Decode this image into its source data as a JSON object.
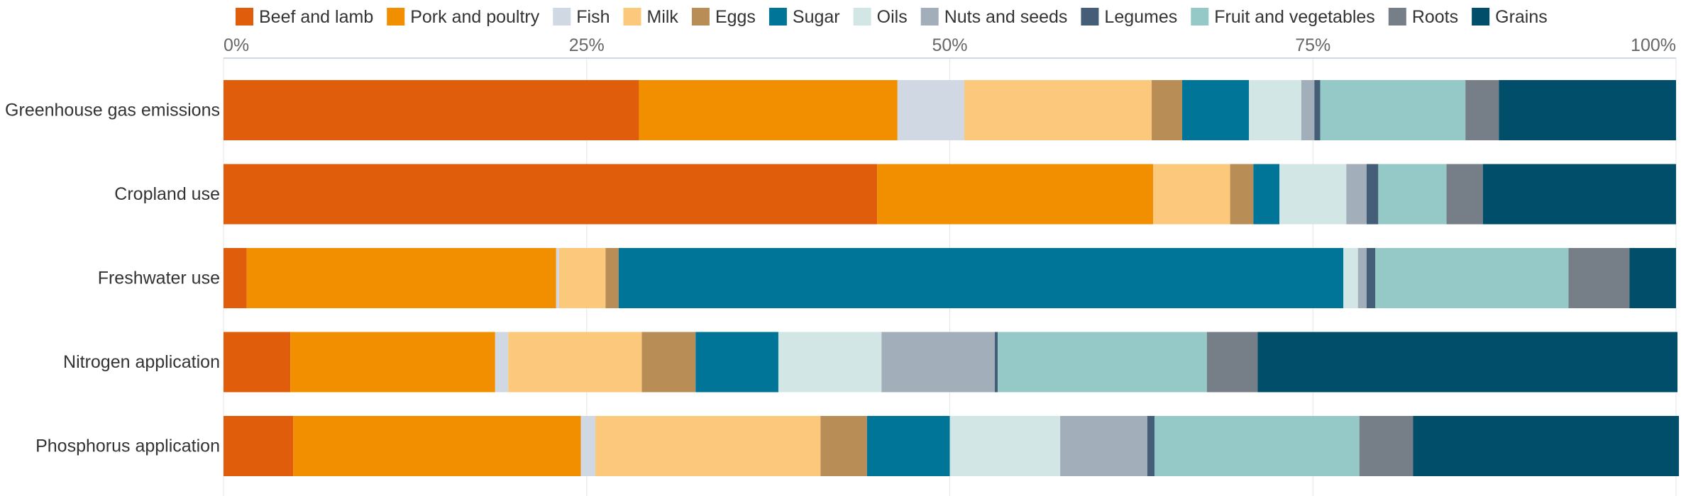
{
  "chart_data": {
    "type": "bar",
    "orientation": "horizontal",
    "stacked": "percent",
    "categories": [
      "Greenhouse gas emissions",
      "Cropland use",
      "Freshwater use",
      "Nitrogen application",
      "Phosphorus application"
    ],
    "xlim": [
      0,
      100
    ],
    "x_ticks": [
      "0%",
      "25%",
      "50%",
      "75%",
      "100%"
    ],
    "x_tick_values": [
      0,
      25,
      50,
      75,
      100
    ],
    "x_axis_position": "top",
    "grid": true,
    "legend_position": "top",
    "series": [
      {
        "name": "Beef and lamb",
        "color": "#e05e0b",
        "values": [
          28.6,
          45.0,
          1.6,
          4.6,
          4.8
        ]
      },
      {
        "name": "Pork and poultry",
        "color": "#f28f00",
        "values": [
          17.8,
          19.0,
          21.3,
          14.1,
          19.8
        ]
      },
      {
        "name": "Fish",
        "color": "#cfd8e3",
        "values": [
          4.6,
          0.0,
          0.2,
          0.9,
          1.0
        ]
      },
      {
        "name": "Milk",
        "color": "#fcc87b",
        "values": [
          12.9,
          5.3,
          3.2,
          9.2,
          15.5
        ]
      },
      {
        "name": "Eggs",
        "color": "#b98e56",
        "values": [
          2.1,
          1.6,
          0.9,
          3.7,
          3.2
        ]
      },
      {
        "name": "Sugar",
        "color": "#007598",
        "values": [
          4.6,
          1.8,
          49.9,
          5.7,
          5.7
        ]
      },
      {
        "name": "Oils",
        "color": "#d2e7e5",
        "values": [
          3.6,
          4.6,
          1.0,
          7.1,
          7.6
        ]
      },
      {
        "name": "Nuts and seeds",
        "color": "#a2aeba",
        "values": [
          0.9,
          1.4,
          0.6,
          7.8,
          6.0
        ]
      },
      {
        "name": "Legumes",
        "color": "#435e76",
        "values": [
          0.4,
          0.8,
          0.6,
          0.2,
          0.5
        ]
      },
      {
        "name": "Fruit and vegetables",
        "color": "#94c9c8",
        "values": [
          10.0,
          4.7,
          13.3,
          14.4,
          14.1
        ]
      },
      {
        "name": "Roots",
        "color": "#767e87",
        "values": [
          2.3,
          2.5,
          4.2,
          3.5,
          3.7
        ]
      },
      {
        "name": "Grains",
        "color": "#004e6a",
        "values": [
          12.2,
          13.3,
          3.2,
          28.9,
          18.3
        ]
      }
    ]
  }
}
